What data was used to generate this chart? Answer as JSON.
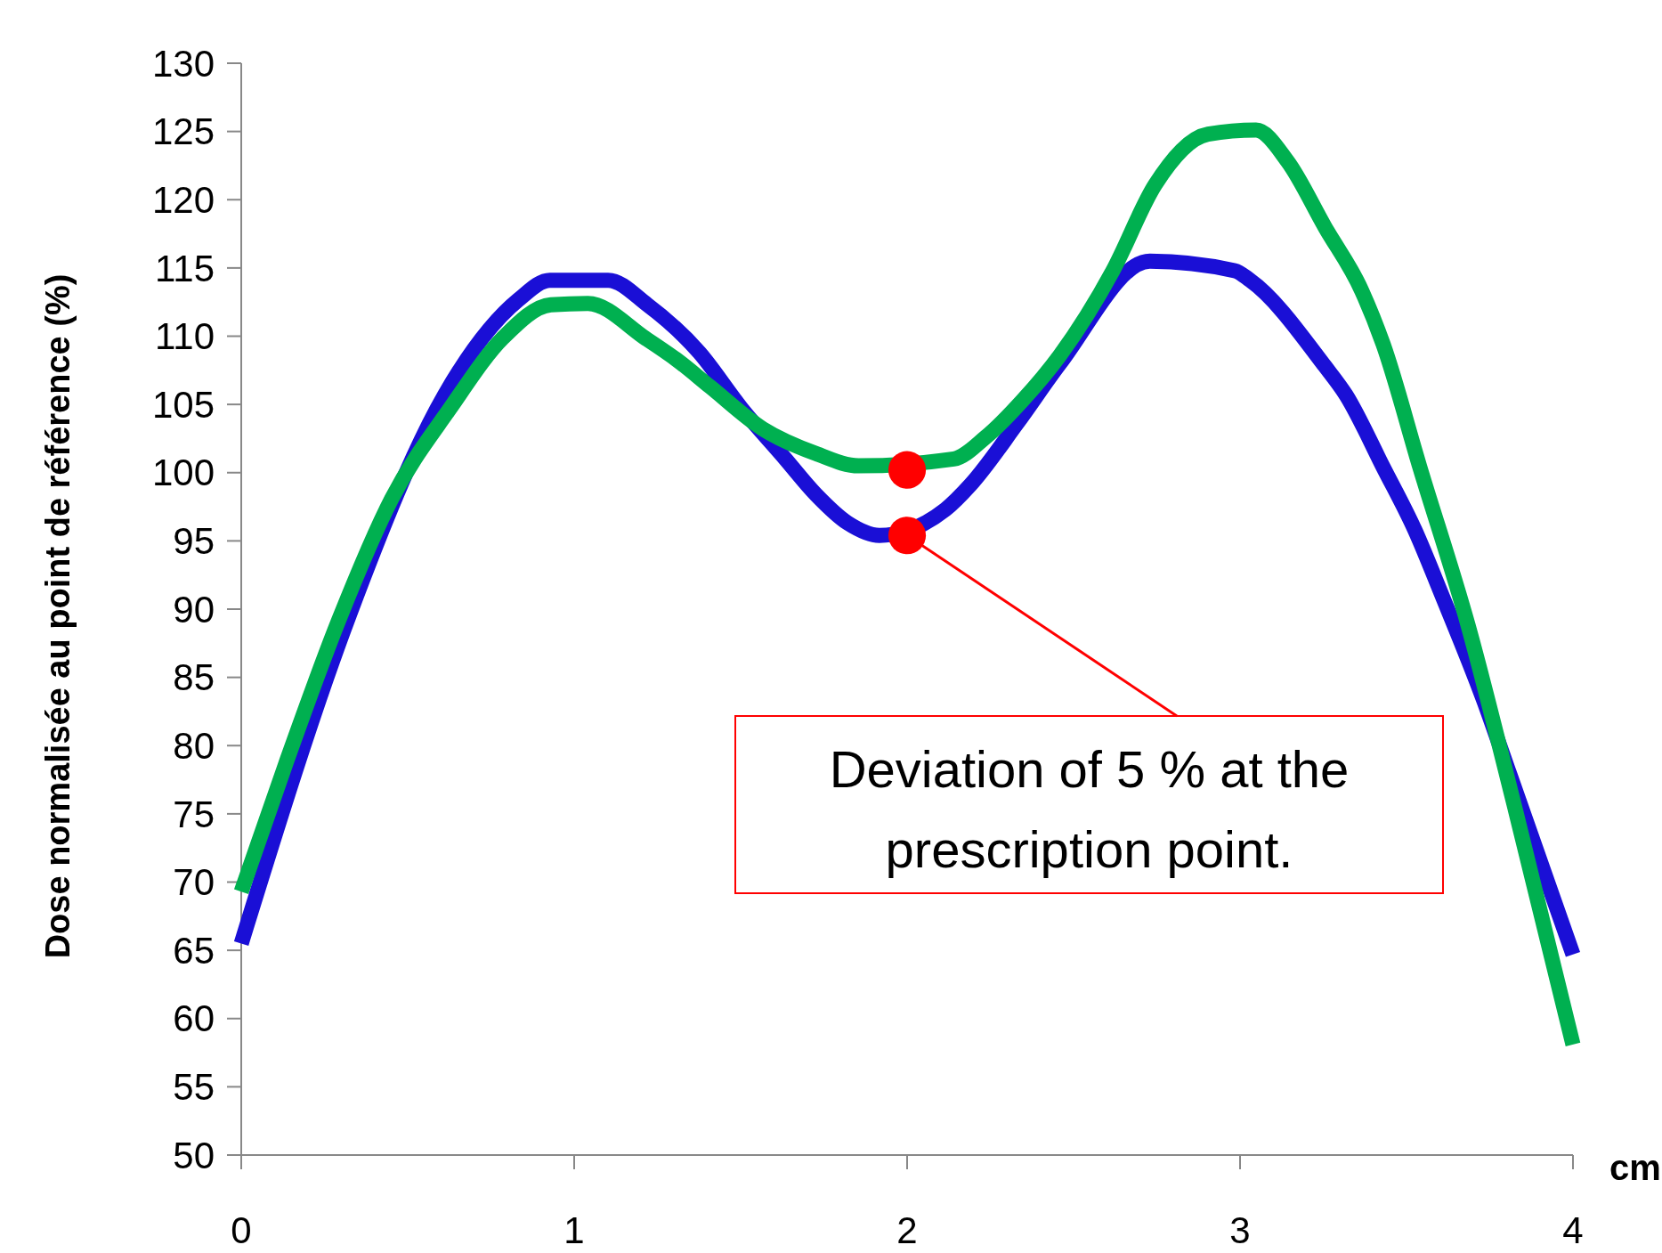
{
  "chart_data": {
    "type": "line",
    "xlabel": "cm",
    "ylabel": "Dose normalisée au point de référence (%)",
    "xlim": [
      0,
      4
    ],
    "xticks": [
      0,
      1,
      2,
      3,
      4
    ],
    "ylim": [
      50,
      130
    ],
    "yticks": [
      50,
      55,
      60,
      65,
      70,
      75,
      80,
      85,
      90,
      95,
      100,
      105,
      110,
      115,
      120,
      125,
      130
    ],
    "grid": false,
    "line_style": "solid",
    "marker": "none",
    "series": [
      {
        "color": "#1a0fd6",
        "x": [
          0,
          0.325,
          0.611,
          0.834,
          0.927,
          1.102,
          1.22,
          1.376,
          1.503,
          1.631,
          1.726,
          1.822,
          1.917,
          2.115,
          2.19,
          2.33,
          2.459,
          2.729,
          2.984,
          3.03,
          3.255,
          3.318,
          3.43,
          3.525,
          3.605,
          3.732,
          3.81,
          4
        ],
        "values": [
          65.5,
          89.6,
          105.7,
          112.7,
          114.1,
          114.1,
          112.3,
          108.8,
          104.7,
          101.1,
          98.4,
          96.3,
          95.4,
          97.3,
          99.1,
          103.6,
          108,
          115.5,
          114.8,
          114.1,
          107.8,
          105.7,
          100.4,
          95.8,
          91.1,
          83.3,
          77.9,
          64.7
        ]
      },
      {
        "color": "#00b050",
        "x": [
          0,
          0.134,
          0.293,
          0.452,
          0.627,
          0.787,
          0.93,
          1.041,
          1.217,
          1.312,
          1.408,
          1.567,
          1.726,
          1.854,
          2.14,
          2.236,
          2.347,
          2.459,
          2.618,
          2.745,
          2.904,
          3.048,
          3.143,
          3.255,
          3.366,
          3.43,
          3.54,
          3.685,
          3.828,
          4
        ],
        "values": [
          69.3,
          78.7,
          89.2,
          98.1,
          104.7,
          109.9,
          112.3,
          112.4,
          109.8,
          108.2,
          106.3,
          103.2,
          101.4,
          100.5,
          101,
          102.6,
          105.3,
          108.6,
          114.8,
          121.1,
          124.8,
          125.1,
          122.8,
          118,
          113.3,
          109.4,
          100.4,
          88.8,
          75.2,
          58.1
        ]
      },
      {
        "type": "scatter",
        "marker": "circle",
        "color": "#ff0000",
        "x": [
          2,
          2
        ],
        "values": [
          100.2,
          95.4
        ]
      }
    ],
    "annotations": [
      {
        "text": "Deviation of 5 % at the prescription point.",
        "x": 2,
        "y": 95.4
      }
    ]
  }
}
